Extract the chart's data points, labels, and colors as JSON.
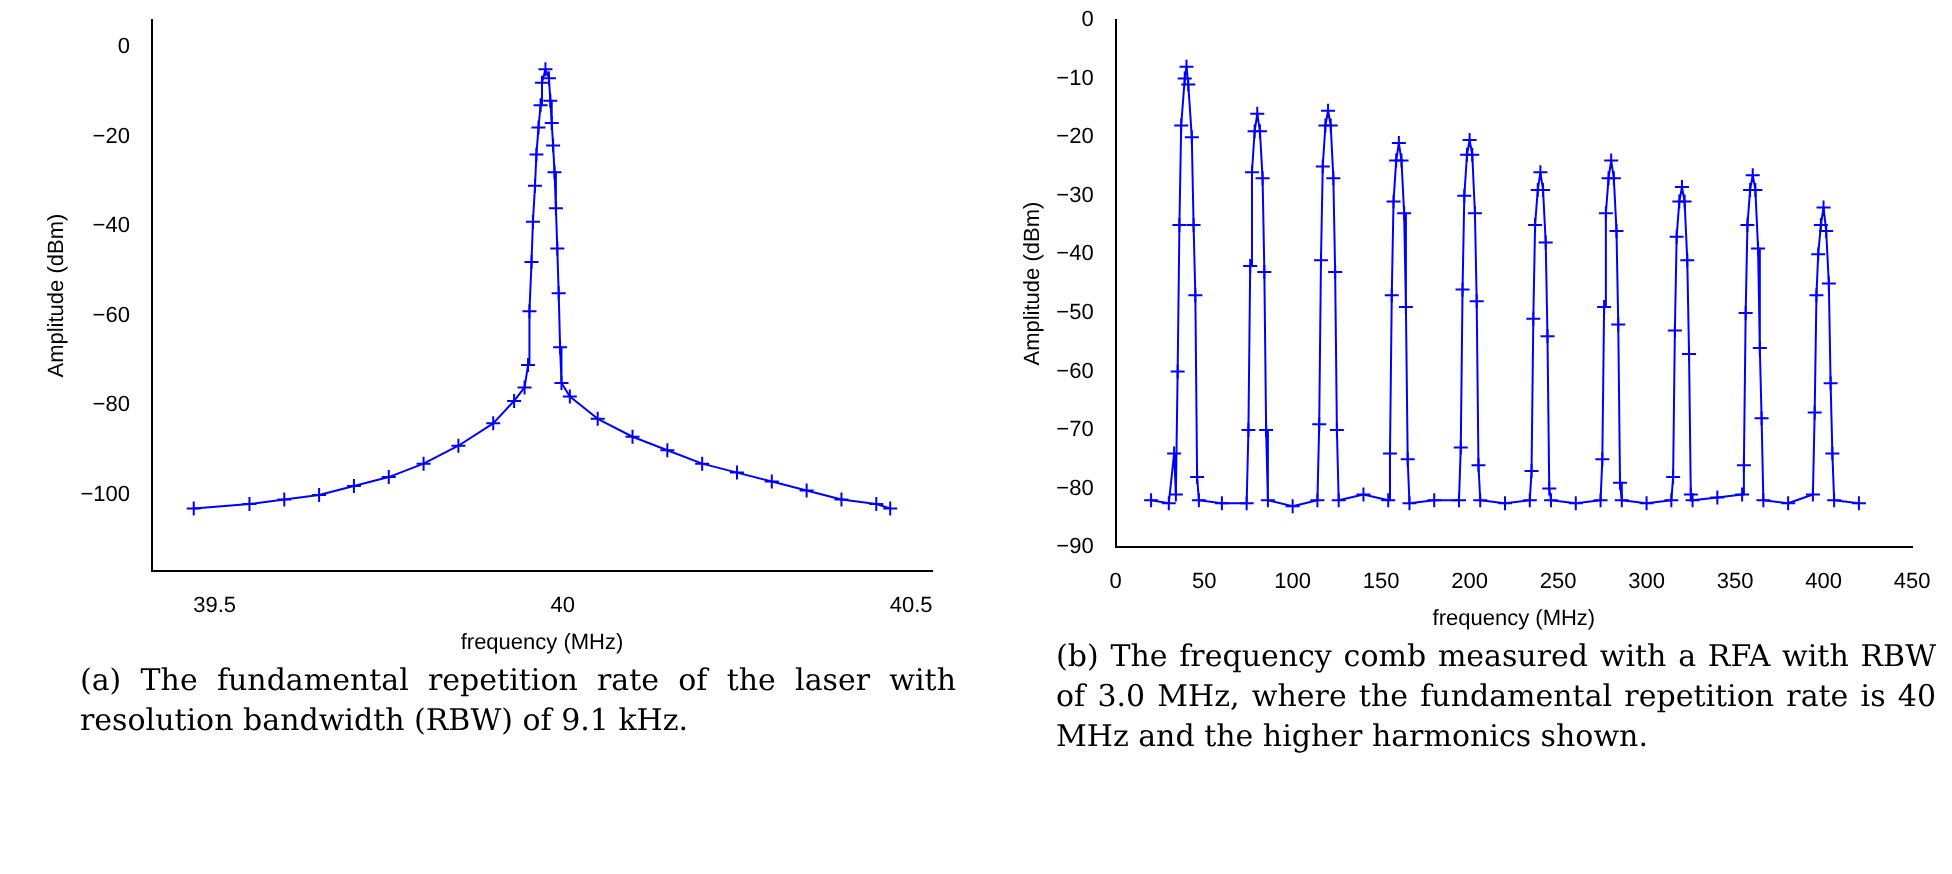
{
  "chart_data": [
    {
      "type": "line",
      "xlabel": "frequency (MHz)",
      "ylabel": "Amplitude (dBm)",
      "xlim": [
        39.41,
        40.53
      ],
      "xticks": [
        39.5,
        40,
        40.5
      ],
      "ylim": [
        -117,
        6
      ],
      "yticks": [
        -100,
        -80,
        -60,
        -40,
        -20,
        0
      ],
      "grid": false,
      "legend": false,
      "marker": "cross",
      "line_style": "solid",
      "series": [
        {
          "color": "#0000ff",
          "x": [
            39.47,
            39.55,
            39.6,
            39.65,
            39.7,
            39.75,
            39.8,
            39.85,
            39.9,
            39.93,
            39.945,
            39.95,
            39.952,
            39.955,
            39.957,
            39.96,
            39.962,
            39.965,
            39.968,
            39.97,
            39.975,
            39.98,
            39.982,
            39.984,
            39.986,
            39.988,
            39.99,
            39.992,
            39.994,
            39.996,
            39.998,
            40.01,
            40.05,
            40.1,
            40.15,
            40.2,
            40.25,
            40.3,
            40.35,
            40.4,
            40.45,
            40.47
          ],
          "values": [
            -103,
            -102,
            -101,
            -100,
            -98,
            -96,
            -93,
            -89,
            -84,
            -79,
            -76,
            -71,
            -59,
            -48,
            -39,
            -31,
            -24,
            -18,
            -13,
            -8,
            -5,
            -7,
            -12,
            -17,
            -22,
            -28,
            -36,
            -45,
            -55,
            -67,
            -75,
            -78,
            -83,
            -87,
            -90,
            -93,
            -95,
            -97,
            -99,
            -101,
            -102,
            -103
          ]
        }
      ],
      "annotations": [
        "(a) The fundamental repetition rate of the laser with resolution bandwidth (RBW) of 9.1 kHz."
      ]
    },
    {
      "type": "line",
      "xlabel": "frequency (MHz)",
      "ylabel": "Amplitude (dBm)",
      "xlim": [
        0,
        450
      ],
      "xticks": [
        0,
        50,
        100,
        150,
        200,
        250,
        300,
        350,
        400,
        450
      ],
      "ylim": [
        -90,
        0
      ],
      "yticks": [
        -90,
        -80,
        -70,
        -60,
        -50,
        -40,
        -30,
        -20,
        -10,
        0
      ],
      "grid": false,
      "legend": false,
      "marker": "cross",
      "line_style": "solid",
      "series": [
        {
          "color": "#0000ff",
          "x": [
            20,
            30,
            33,
            34,
            35,
            36,
            37,
            39,
            40,
            41,
            43,
            44,
            45,
            46,
            47,
            60,
            74,
            75,
            76,
            77,
            78.5,
            80,
            81.5,
            83,
            84,
            85,
            86,
            100,
            114,
            115,
            116,
            117,
            118.5,
            120,
            121.5,
            123,
            124,
            125,
            126,
            140,
            154,
            155,
            156,
            157,
            158.5,
            160,
            161.5,
            163,
            164,
            165,
            166,
            180,
            194,
            195,
            196,
            197,
            198.5,
            200,
            201.5,
            203,
            204,
            205,
            206,
            220,
            234,
            235,
            236,
            237,
            238.5,
            240,
            241.5,
            243,
            244,
            245,
            246,
            260,
            274,
            275,
            276,
            277,
            278.5,
            280,
            281.5,
            283,
            284,
            285,
            286,
            300,
            314,
            315,
            316,
            317,
            318.5,
            320,
            321.5,
            323,
            324,
            325,
            326,
            340,
            354,
            355,
            356,
            357,
            358.5,
            360,
            361.5,
            363,
            364,
            365,
            366,
            380,
            394,
            395,
            396,
            397,
            398.5,
            400,
            401.5,
            403,
            404,
            405,
            406,
            420
          ],
          "values": [
            -82,
            -82.5,
            -74,
            -81,
            -60,
            -35,
            -18,
            -10,
            -8,
            -11,
            -20,
            -35,
            -47,
            -78,
            -82,
            -82.5,
            -82.5,
            -70,
            -42,
            -26,
            -19,
            -16,
            -19,
            -27,
            -43,
            -70,
            -82,
            -83,
            -82,
            -69,
            -41,
            -25,
            -18,
            -15.5,
            -18,
            -27,
            -43,
            -70,
            -82,
            -81,
            -82,
            -74,
            -47,
            -31,
            -24,
            -21,
            -24,
            -33,
            -49,
            -75,
            -82.5,
            -82,
            -82,
            -73,
            -46,
            -30,
            -23,
            -20.5,
            -23,
            -33,
            -48,
            -76,
            -82,
            -82.5,
            -82,
            -77,
            -51,
            -35,
            -29,
            -26,
            -29,
            -38,
            -54,
            -80,
            -82,
            -82.5,
            -82,
            -75,
            -49,
            -33,
            -27,
            -24,
            -27,
            -36,
            -52,
            -79,
            -82,
            -82.5,
            -82,
            -78,
            -53,
            -37,
            -31,
            -28.5,
            -31,
            -41,
            -57,
            -81,
            -82,
            -81.5,
            -81,
            -76,
            -50,
            -35,
            -29,
            -26.5,
            -29,
            -39,
            -56,
            -68,
            -82,
            -82.5,
            -81,
            -67,
            -47,
            -40,
            -35,
            -32,
            -36,
            -45,
            -62,
            -74,
            -82,
            -82.5
          ]
        }
      ],
      "annotations": [
        "(b) The frequency comb measured with a RFA with RBW of 3.0 MHz, where the fundamental repetition rate is 40 MHz and the higher harmonics shown."
      ]
    }
  ]
}
